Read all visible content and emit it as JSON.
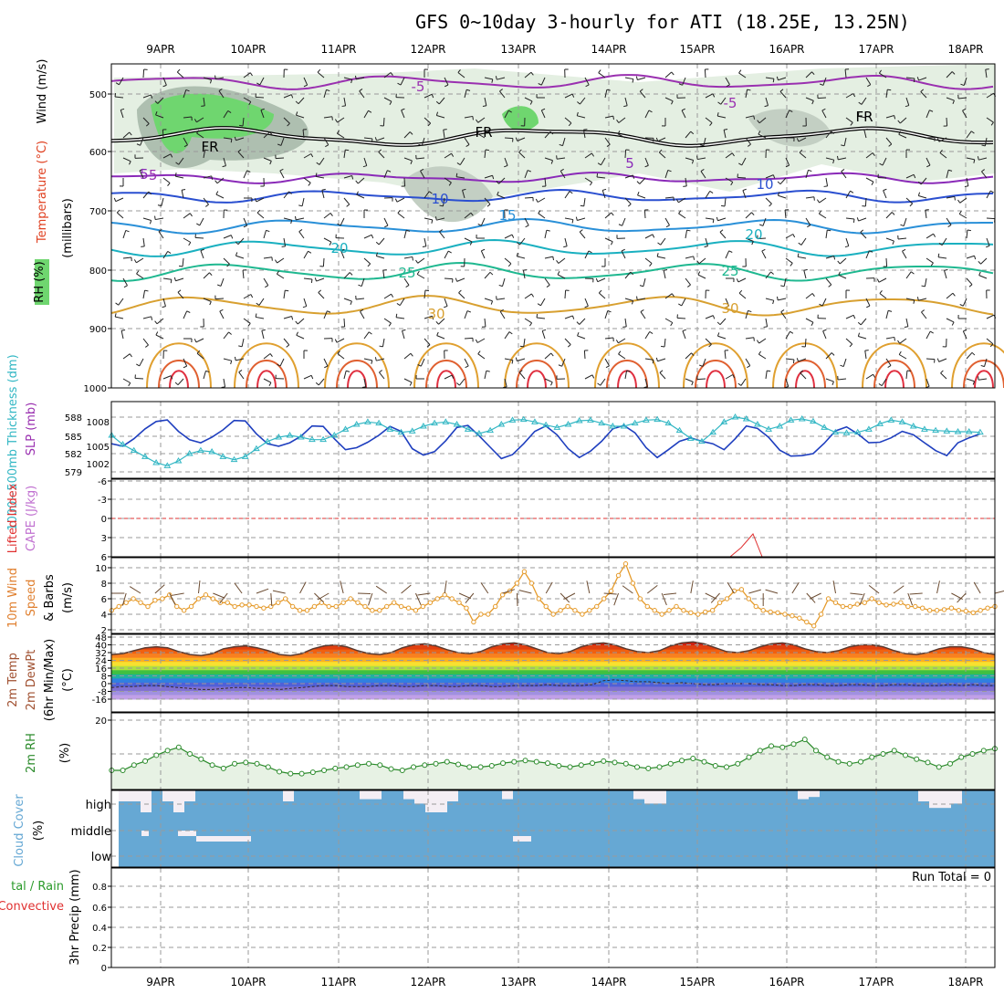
{
  "title": "GFS 0~10day 3-hourly for ATI (18.25E, 13.25N)",
  "dates": [
    "9APR",
    "10APR",
    "11APR",
    "12APR",
    "13APR",
    "14APR",
    "15APR",
    "16APR",
    "17APR",
    "18APR"
  ],
  "colors": {
    "slp": "#1f3fbf",
    "thickness": "#33b7c4",
    "wind10m": "#e59a2a",
    "rh2m": "#2a8a2a",
    "cloud": "#66a8d4",
    "cape": "#c070d0",
    "lifted": "#e03030"
  },
  "panels": {
    "upper": {
      "ylabel": "(millibars)",
      "legend_wind": "Wind (m/s)",
      "legend_temp": "Temperature (°C)",
      "legend_rh": "RH (%)",
      "ticks": [
        "500",
        "600",
        "700",
        "800",
        "900",
        "1000"
      ],
      "contour_labels": [
        "-5",
        "-5",
        "-5",
        "5",
        "5",
        "10",
        "10",
        "15",
        "20",
        "20",
        "25",
        "25",
        "30",
        "30",
        "FR",
        "FR",
        "FR"
      ]
    },
    "slp": {
      "label_thick": "1000~500mb Thickness (dm)",
      "label_slp": "SLP (mb)",
      "ticks_left": [
        "588",
        "585",
        "582",
        "579"
      ],
      "ticks_right": [
        "1008",
        "1005",
        "1002"
      ]
    },
    "cape": {
      "label_li": "Lifted Index",
      "label_cape": "CAPE (J/kg)",
      "ticks": [
        "-6",
        "-3",
        "0",
        "3",
        "6"
      ]
    },
    "wind": {
      "label_title": "10m Wind",
      "label_speed": "Speed",
      "label_barbs": "& Barbs",
      "label_unit": "(m/s)",
      "ticks": [
        "10",
        "8",
        "6",
        "4",
        "2"
      ]
    },
    "temp": {
      "label_1": "2m Temp",
      "label_2": "2m DewPt",
      "label_3": "(6hr Min/Max)",
      "label_4": "(°C)",
      "ticks": [
        "48",
        "40",
        "32",
        "24",
        "16",
        "8",
        "0",
        "-8",
        "-16"
      ]
    },
    "rh": {
      "label": "2m RH",
      "unit": "(%)",
      "ticks": [
        "20"
      ]
    },
    "cloud": {
      "label": "Cloud Cover",
      "unit": "(%)",
      "levels": [
        "high",
        "middle",
        "low"
      ]
    },
    "precip": {
      "label_a": "tal / Rain",
      "label_b": "Convective",
      "label_c": "3hr Precip (mm)",
      "ticks": [
        "0.8",
        "0.6",
        "0.4",
        "0.2",
        "0"
      ],
      "run_total": "Run Total = 0"
    }
  },
  "chart_data": {
    "type": "line",
    "x_unit": "3-hourly steps over 10 days (9APR–18APR)",
    "slp_mb": [
      1004,
      1003.5,
      1005,
      1007,
      1008.5,
      1008.8,
      1006.5,
      1004.8,
      1004.2,
      1005.3,
      1006.8,
      1008.7,
      1008.6,
      1006,
      1004,
      1003.5,
      1004.2,
      1005.5,
      1007.6,
      1007.5,
      1005,
      1002.8,
      1003.2,
      1004.3,
      1005.7,
      1007.5,
      1006.5,
      1003,
      1001.7,
      1002.4,
      1004.6,
      1007.3,
      1007.7,
      1005.6,
      1003.3,
      1001,
      1001.8,
      1004,
      1006.5,
      1007.6,
      1005.8,
      1003,
      1001.2,
      1002.5,
      1004.5,
      1007,
      1007.7,
      1006.2,
      1003.2,
      1001.2,
      1002.8,
      1004.5,
      1005.2,
      1004.5,
      1004,
      1002.8,
      1005,
      1007.6,
      1007.1,
      1005.3,
      1002.7,
      1001.5,
      1001.6,
      1002,
      1004.1,
      1006.6,
      1007.4,
      1006,
      1004.2,
      1004.3,
      1005.2,
      1006.5,
      1005.8,
      1004.2,
      1002.6,
      1001.6,
      1004.2,
      1005.2,
      1006
    ],
    "thickness_dm": [
      585,
      583.5,
      582.5,
      581.5,
      580.5,
      580,
      580.8,
      582,
      582.5,
      582.3,
      581.5,
      581,
      581.5,
      582.8,
      584,
      584.7,
      585,
      584.7,
      584.3,
      584.3,
      585,
      586,
      586.8,
      587.2,
      587,
      586,
      585.5,
      585.7,
      586.5,
      587,
      587.2,
      586.8,
      586,
      585.3,
      585.8,
      586.8,
      587.5,
      587.6,
      587.2,
      586.7,
      586.3,
      586.8,
      587.4,
      587.5,
      587,
      586.5,
      586.5,
      587,
      587.5,
      587.6,
      587,
      585.8,
      584.5,
      584,
      585.5,
      587.2,
      588,
      587.7,
      586.8,
      586,
      586.5,
      587.5,
      587.7,
      587.3,
      586.3,
      585.5,
      585.4,
      585.5,
      586,
      586.9,
      587.5,
      587.2,
      586.5,
      586,
      585.8,
      585.7,
      585.6,
      585.6,
      585.5
    ],
    "wind10m_ms": [
      4.5,
      5,
      5.5,
      6,
      5.5,
      5,
      5.8,
      6,
      6.5,
      5,
      4.5,
      5,
      6,
      6.5,
      6,
      5.5,
      5.5,
      5,
      5.2,
      5.2,
      5,
      4.8,
      5,
      5.5,
      6,
      5,
      4.5,
      4.5,
      5,
      5.5,
      5,
      5,
      5.5,
      6,
      5.5,
      5,
      4.5,
      4.5,
      5,
      5.5,
      5,
      4.8,
      4.5,
      5,
      5.5,
      6,
      6.5,
      6,
      5.5,
      4.8,
      3,
      4,
      4,
      5,
      6.5,
      7,
      8,
      9.5,
      8,
      6,
      5,
      4,
      4.5,
      5,
      4.5,
      4,
      4.5,
      5,
      6,
      7,
      9,
      10.5,
      8,
      6,
      5,
      4.5,
      4,
      4.5,
      5,
      4.5,
      4.2,
      4,
      4.3,
      4.5,
      5.5,
      6,
      7,
      7.2,
      6,
      5,
      4.5,
      4.3,
      4.2,
      4,
      3.8,
      3.5,
      3,
      2.5,
      4,
      6,
      5.5,
      5,
      5,
      5.3,
      5.5,
      6,
      5.5,
      5.2,
      5.3,
      5.5,
      5,
      5,
      4.8,
      4.5,
      4.5,
      4.6,
      4.8,
      4.5,
      4.4,
      4.2,
      4.5,
      4.8,
      5
    ],
    "temp2m_c": [
      30,
      31,
      34,
      37,
      38,
      37,
      33,
      30,
      29,
      31,
      36,
      38,
      39,
      37,
      34,
      30,
      29,
      31,
      36,
      39,
      40,
      38,
      34,
      31,
      30,
      32,
      37,
      40,
      41,
      39,
      35,
      32,
      31,
      33,
      38,
      41,
      42,
      40,
      36,
      32,
      31,
      33,
      38,
      41,
      42,
      40,
      36,
      33,
      32,
      34,
      39,
      42,
      43,
      41,
      37,
      33,
      32,
      34,
      38,
      41,
      42,
      40,
      36,
      33,
      32,
      34,
      38,
      40,
      40,
      38,
      34,
      31,
      30,
      32,
      36,
      38,
      38,
      36,
      32,
      30
    ],
    "dewpt2m_c": [
      -4,
      -3,
      -3,
      -2,
      -2,
      -3,
      -4,
      -5,
      -6,
      -6,
      -5,
      -4,
      -4,
      -5,
      -5,
      -6,
      -5,
      -4,
      -3,
      -2,
      -2,
      -3,
      -3,
      -3,
      -2,
      -2,
      -3,
      -3,
      -2,
      -2,
      -3,
      -3,
      -2,
      -2,
      -3,
      -3,
      -2,
      -2,
      -2,
      -1,
      -2,
      -2,
      -2,
      -1,
      3,
      4,
      3,
      2,
      2,
      1,
      0,
      1,
      0,
      -1,
      -1,
      0,
      0,
      0,
      -1,
      -1,
      -2,
      -2,
      -1,
      -1,
      -2,
      -2,
      -1,
      -1,
      -2,
      -2,
      -1,
      -1,
      -2,
      -2,
      -2,
      -1,
      -2,
      -1,
      -2,
      -2
    ],
    "rh2m_rel": [
      0.25,
      0.25,
      0.33,
      0.39,
      0.48,
      0.55,
      0.6,
      0.5,
      0.42,
      0.33,
      0.28,
      0.35,
      0.37,
      0.35,
      0.3,
      0.23,
      0.2,
      0.2,
      0.22,
      0.25,
      0.28,
      0.3,
      0.33,
      0.35,
      0.33,
      0.27,
      0.25,
      0.3,
      0.33,
      0.35,
      0.38,
      0.34,
      0.3,
      0.3,
      0.32,
      0.36,
      0.38,
      0.4,
      0.38,
      0.36,
      0.32,
      0.3,
      0.33,
      0.36,
      0.39,
      0.37,
      0.35,
      0.3,
      0.28,
      0.3,
      0.35,
      0.4,
      0.43,
      0.38,
      0.32,
      0.3,
      0.35,
      0.45,
      0.55,
      0.62,
      0.6,
      0.65,
      0.72,
      0.55,
      0.45,
      0.38,
      0.35,
      0.38,
      0.45,
      0.5,
      0.55,
      0.48,
      0.42,
      0.37,
      0.3,
      0.35,
      0.45,
      0.5,
      0.55,
      0.58
    ],
    "cloud_high_frac": [
      0.5,
      0.5,
      1,
      0,
      0.5,
      1,
      0.5,
      0,
      0,
      0,
      0,
      0,
      0,
      0,
      0,
      0.5,
      0,
      0,
      0,
      0,
      0,
      0,
      0.4,
      0.4,
      0,
      0,
      0.4,
      0.6,
      1,
      1,
      0.5,
      0,
      0,
      0,
      0,
      0.4,
      0,
      0,
      0,
      0,
      0,
      0,
      0,
      0,
      0,
      0,
      0,
      0.4,
      0.6,
      0.6,
      0,
      0,
      0,
      0,
      0,
      0,
      0,
      0,
      0,
      0,
      0,
      0,
      0.4,
      0.3,
      0,
      0,
      0,
      0,
      0,
      0,
      0,
      0,
      0,
      0.5,
      0.8,
      0.8,
      0.6,
      0,
      0,
      0
    ],
    "precip_mm": 0
  }
}
